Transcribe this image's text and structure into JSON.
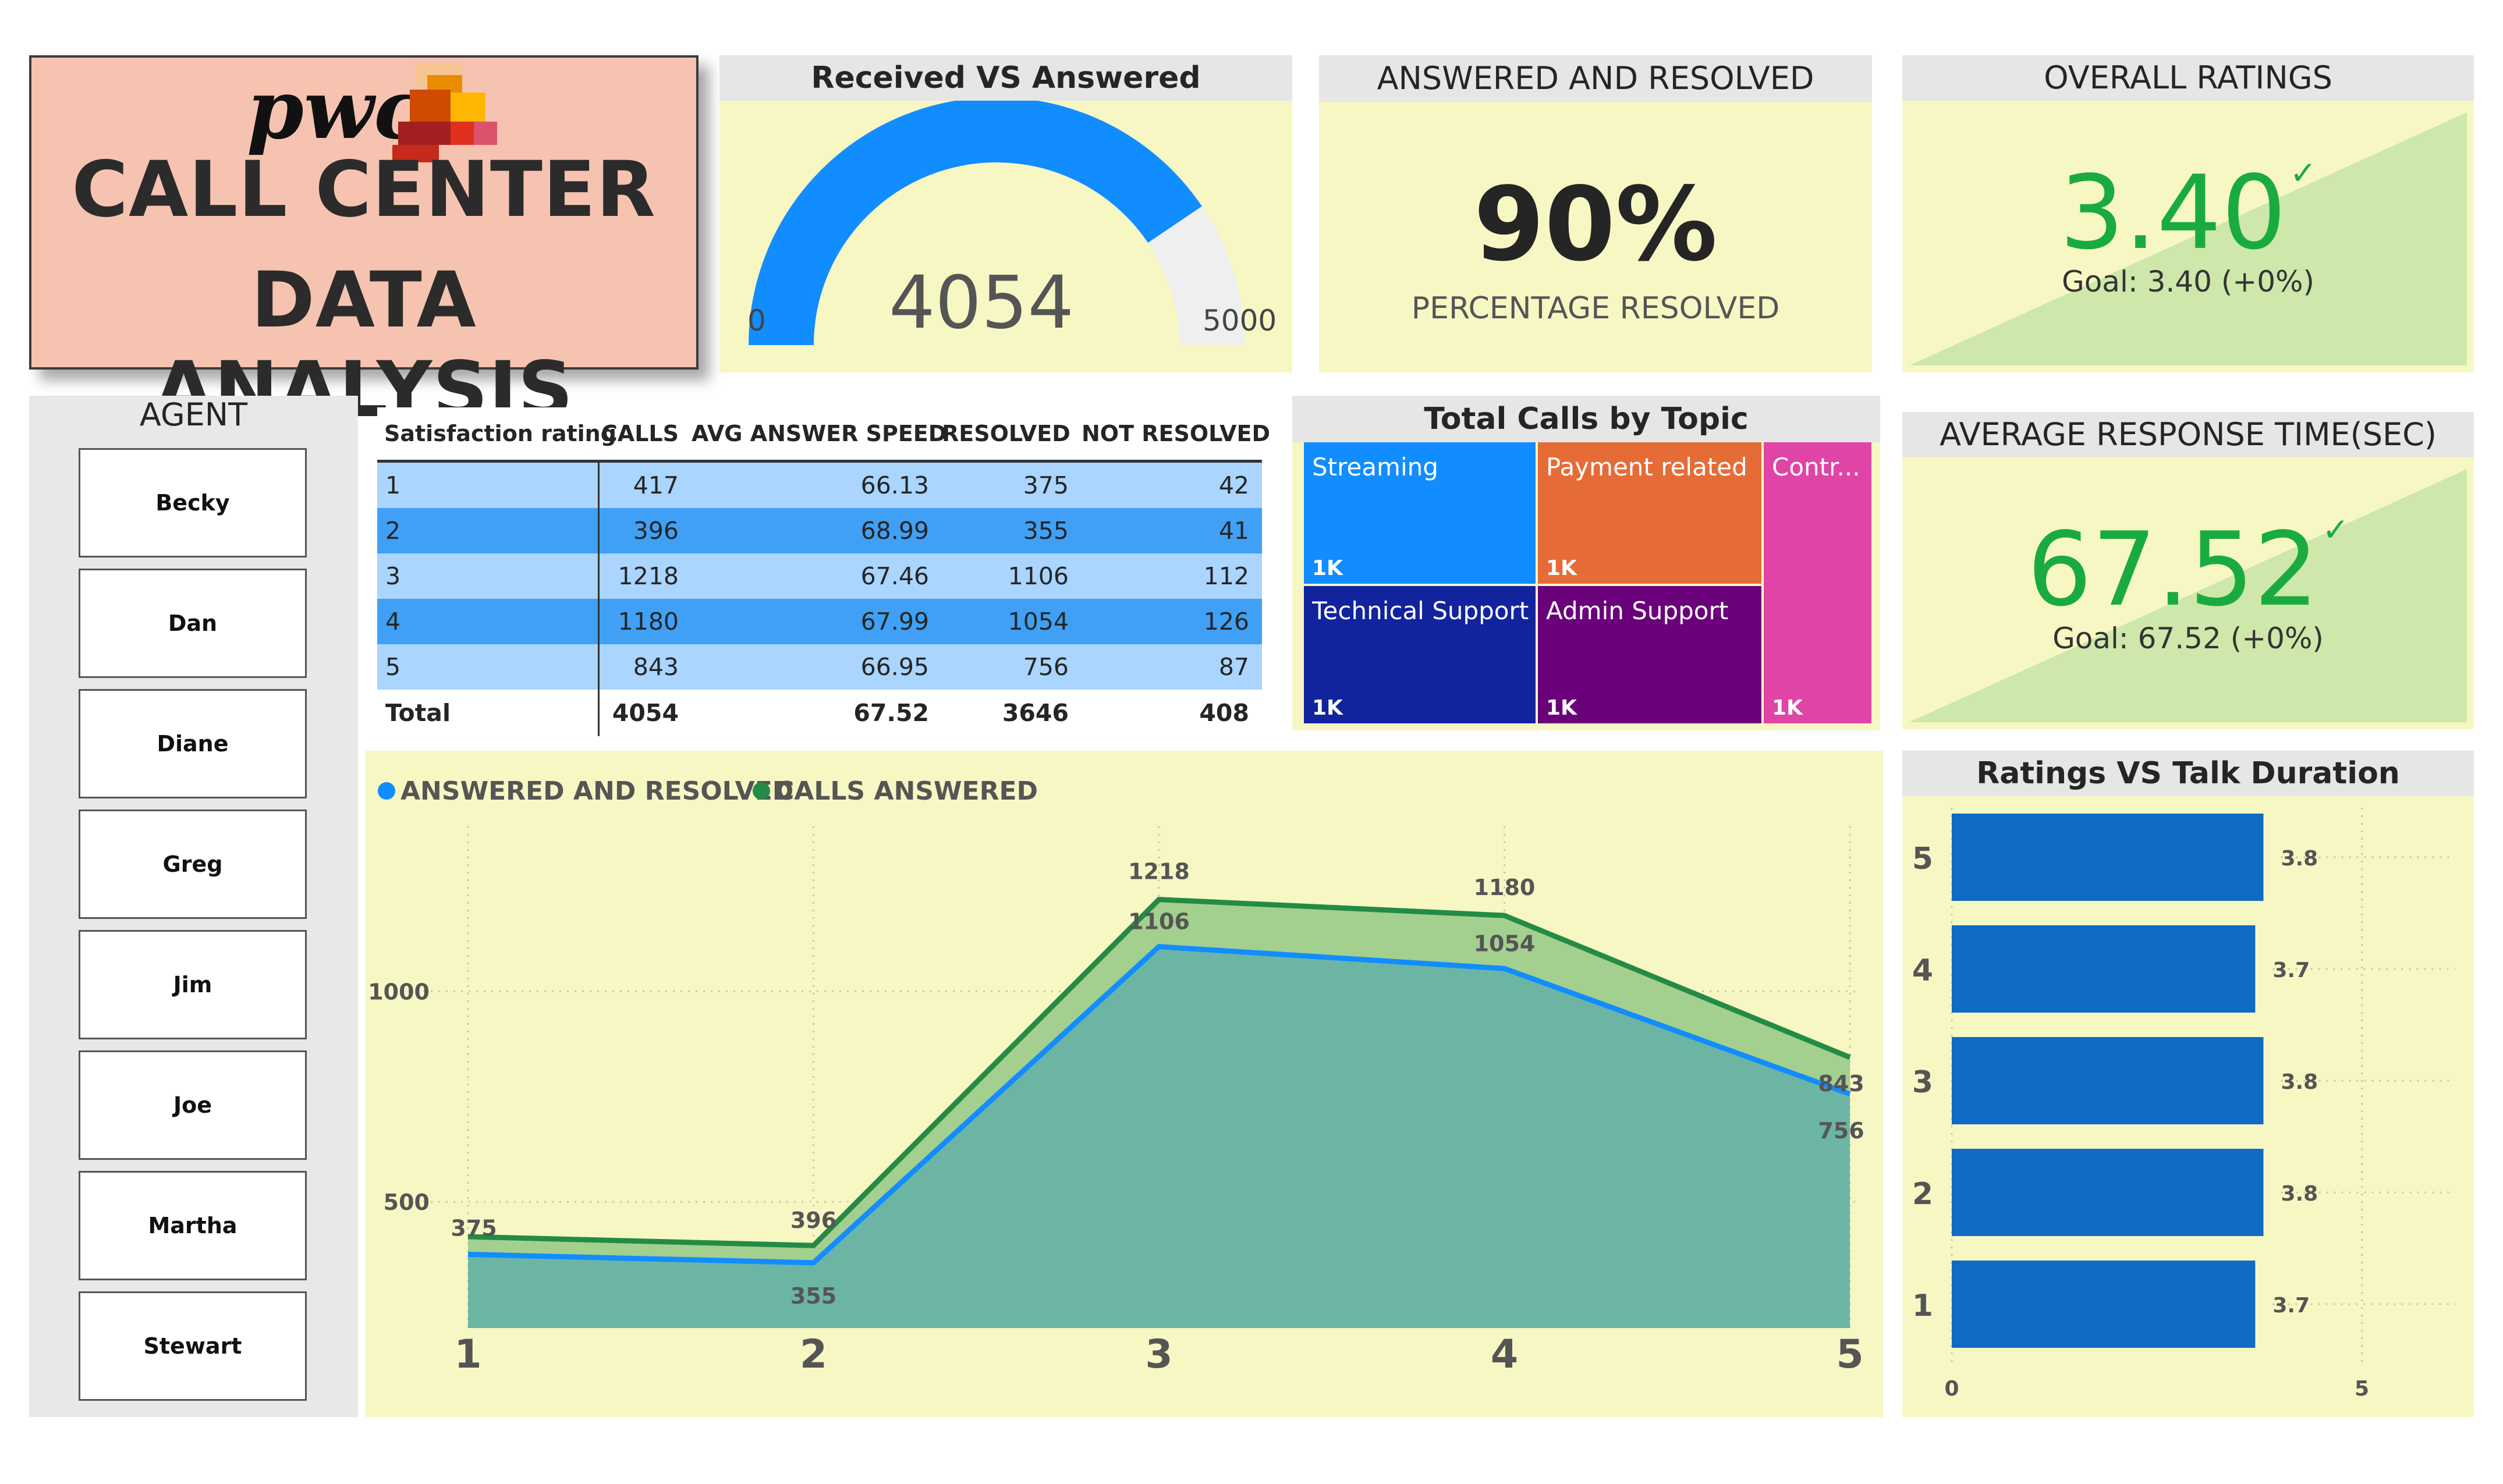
{
  "title_card": {
    "logo_text": "pwc",
    "line1": "CALL CENTER",
    "line2": "DATA ANALYSIS"
  },
  "colors": {
    "panel_bg": "#f7f7c4",
    "gauge_fill": "#118dff",
    "gauge_track": "#efefef",
    "kpi_green": "#1aab40",
    "bar_blue": "#0f6bc3"
  },
  "gauge": {
    "title": "Received VS Answered",
    "value": "4054",
    "min": "0",
    "max": "5000",
    "value_num": 4054,
    "max_num": 5000
  },
  "answered_resolved": {
    "title": "ANSWERED AND RESOLVED",
    "value": "90%",
    "subtitle": "PERCENTAGE RESOLVED"
  },
  "overall_ratings": {
    "title": "OVERALL RATINGS",
    "value": "3.40",
    "goal": "Goal: 3.40 (+0%)",
    "check": "✓"
  },
  "avg_response": {
    "title": "AVERAGE RESPONSE TIME(SEC)",
    "value": "67.52",
    "goal": "Goal: 67.52 (+0%)",
    "check": "✓"
  },
  "agent_slicer": {
    "title": "AGENT",
    "agents": [
      "Becky",
      "Dan",
      "Diane",
      "Greg",
      "Jim",
      "Joe",
      "Martha",
      "Stewart"
    ]
  },
  "table": {
    "columns": [
      "Satisfaction rating",
      "CALLS",
      "AVG ANSWER SPEED",
      "RESOLVED",
      "NOT RESOLVED"
    ],
    "rows": [
      [
        "1",
        "417",
        "66.13",
        "375",
        "42"
      ],
      [
        "2",
        "396",
        "68.99",
        "355",
        "41"
      ],
      [
        "3",
        "1218",
        "67.46",
        "1106",
        "112"
      ],
      [
        "4",
        "1180",
        "67.99",
        "1054",
        "126"
      ],
      [
        "5",
        "843",
        "66.95",
        "756",
        "87"
      ]
    ],
    "total": [
      "Total",
      "4054",
      "67.52",
      "3646",
      "408"
    ]
  },
  "treemap": {
    "title": "Total Calls by Topic",
    "tiles": [
      {
        "label": "Streaming",
        "value": "1K",
        "color": "#118dff"
      },
      {
        "label": "Payment related",
        "value": "1K",
        "color": "#e66c37"
      },
      {
        "label": "Contr...",
        "value": "1K",
        "color": "#e044a7"
      },
      {
        "label": "Technical Support",
        "value": "1K",
        "color": "#12239e"
      },
      {
        "label": "Admin Support",
        "value": "1K",
        "color": "#6b007b"
      }
    ]
  },
  "chart_data": [
    {
      "type": "area",
      "title": "",
      "legend": [
        "ANSWERED AND RESOLVED",
        "CALLS ANSWERED"
      ],
      "legend_placement": "top-left",
      "categories": [
        "1",
        "2",
        "3",
        "4",
        "5"
      ],
      "series": [
        {
          "name": "ANSWERED AND RESOLVED",
          "values": [
            375,
            355,
            1106,
            1054,
            756
          ],
          "labels": [
            "375",
            "355",
            "1106",
            "1054",
            "756"
          ],
          "color": "#118dff"
        },
        {
          "name": "CALLS ANSWERED",
          "values": [
            417,
            396,
            1218,
            1180,
            843
          ],
          "labels": [
            "",
            "396",
            "1218",
            "1180",
            "843"
          ],
          "color": "#238b45"
        }
      ],
      "y_ticks": [
        "500",
        "1000"
      ],
      "ylim": [
        200,
        1400
      ],
      "grid": "dotted"
    },
    {
      "type": "bar",
      "orientation": "horizontal",
      "title": "Ratings VS Talk Duration",
      "categories": [
        "5",
        "4",
        "3",
        "2",
        "1"
      ],
      "values": [
        3.8,
        3.7,
        3.8,
        3.8,
        3.7
      ],
      "labels": [
        "3.8",
        "3.7",
        "3.8",
        "3.8",
        "3.7"
      ],
      "x_ticks": [
        "0",
        "5"
      ],
      "xlim": [
        0,
        5.5
      ],
      "grid": "dotted"
    }
  ]
}
